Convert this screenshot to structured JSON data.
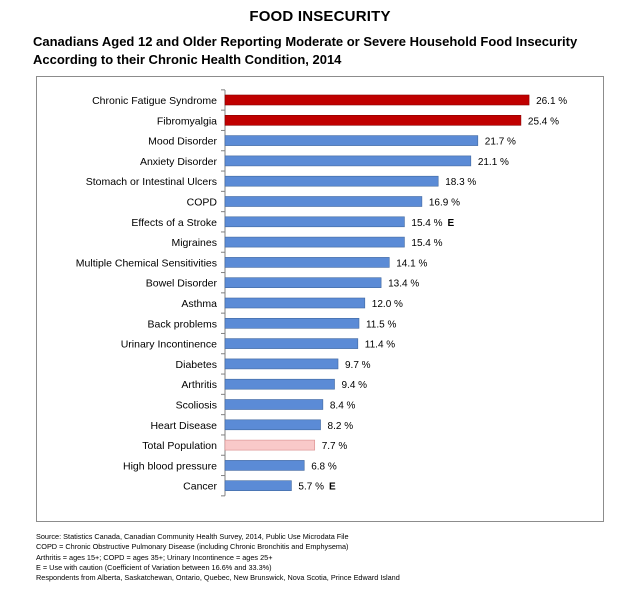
{
  "title": "FOOD INSECURITY",
  "subtitle": "Canadians Aged 12 and Older Reporting Moderate or Severe Household Food Insecurity According to their Chronic Health Condition, 2014",
  "colors": {
    "highlight": "#c00000",
    "standard": "#5b8bd6",
    "total": "#f9c9c9",
    "axis": "#808080"
  },
  "chart_data": {
    "type": "bar",
    "orientation": "horizontal",
    "title": "Canadians Aged 12 and Older Reporting Moderate or Severe Household Food Insecurity According to their Chronic Health Condition, 2014",
    "xlabel": "",
    "ylabel": "",
    "xlim": [
      0,
      30
    ],
    "unit": "%",
    "grid": false,
    "categories": [
      "Chronic Fatigue Syndrome",
      "Fibromyalgia",
      "Mood Disorder",
      "Anxiety Disorder",
      "Stomach or Intestinal Ulcers",
      "COPD",
      "Effects of a Stroke",
      "Migraines",
      "Multiple Chemical Sensitivities",
      "Bowel Disorder",
      "Asthma",
      "Back problems",
      "Urinary Incontinence",
      "Diabetes",
      "Arthritis",
      "Scoliosis",
      "Heart Disease",
      "Total Population",
      "High blood pressure",
      "Cancer"
    ],
    "values": [
      26.1,
      25.4,
      21.7,
      21.1,
      18.3,
      16.9,
      15.4,
      15.4,
      14.1,
      13.4,
      12.0,
      11.5,
      11.4,
      9.7,
      9.4,
      8.4,
      8.2,
      7.7,
      6.8,
      5.7
    ],
    "value_labels": [
      "26.1 %",
      "25.4 %",
      "21.7 %",
      "21.1 %",
      "18.3 %",
      "16.9 %",
      "15.4 %",
      "15.4 %",
      "14.1 %",
      "13.4 %",
      "12.0 %",
      "11.5 %",
      "11.4 %",
      "9.7 %",
      "9.4 %",
      "8.4 %",
      "8.2 %",
      "7.7 %",
      "6.8 %",
      "5.7 %"
    ],
    "flags": [
      "",
      "",
      "",
      "",
      "",
      "",
      "E",
      "",
      "",
      "",
      "",
      "",
      "",
      "",
      "",
      "",
      "",
      "",
      "",
      "E"
    ],
    "styles": [
      "highlight",
      "highlight",
      "standard",
      "standard",
      "standard",
      "standard",
      "standard",
      "standard",
      "standard",
      "standard",
      "standard",
      "standard",
      "standard",
      "standard",
      "standard",
      "standard",
      "standard",
      "total",
      "standard",
      "standard"
    ]
  },
  "footnotes": [
    "Source: Statistics Canada, Canadian Community Health Survey, 2014, Public Use Microdata File",
    "COPD = Chronic Obstructive Pulmonary Disease (including Chronic Bronchitis and Emphysema)",
    "Arthritis = ages 15+; COPD = ages 35+; Urinary Incontinence = ages 25+",
    "E = Use with caution (Coefficient of Variation between 16.6% and 33.3%)",
    "Respondents from Alberta, Saskatchewan, Ontario, Quebec, New Brunswick, Nova Scotia, Prince Edward Island"
  ]
}
